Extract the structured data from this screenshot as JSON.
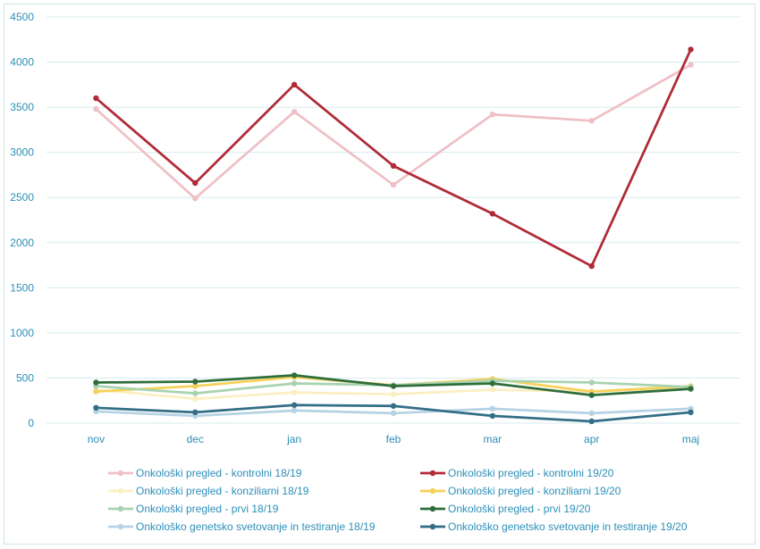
{
  "chart_data": {
    "type": "line",
    "title": "",
    "xlabel": "",
    "ylabel": "",
    "ylim": [
      0,
      4500
    ],
    "yticks": [
      0,
      500,
      1000,
      1500,
      2000,
      2500,
      3000,
      3500,
      4000,
      4500
    ],
    "grid": true,
    "legend_position": "bottom",
    "categories": [
      "nov",
      "dec",
      "jan",
      "feb",
      "mar",
      "apr",
      "maj"
    ],
    "series": [
      {
        "name": "Onkološki pregled - kontrolni 18/19",
        "color": "#efc0c6",
        "values": [
          3480,
          2490,
          3450,
          2640,
          3420,
          3350,
          3970
        ]
      },
      {
        "name": "Onkološki pregled - kontrolni 19/20",
        "color": "#b02a37",
        "values": [
          3600,
          2660,
          3750,
          2850,
          2320,
          1740,
          4140
        ]
      },
      {
        "name": "Onkološki pregled - konziliarni 18/19",
        "color": "#fbefc2",
        "values": [
          370,
          270,
          340,
          320,
          370,
          350,
          400
        ]
      },
      {
        "name": "Onkološki pregled - konziliarni 19/20",
        "color": "#f5d15a",
        "values": [
          350,
          410,
          510,
          420,
          490,
          350,
          410
        ]
      },
      {
        "name": "Onkološki pregled - prvi 18/19",
        "color": "#a8d3b0",
        "values": [
          410,
          330,
          440,
          420,
          470,
          450,
          400
        ]
      },
      {
        "name": "Onkološki pregled - prvi 19/20",
        "color": "#2f6e3b",
        "values": [
          450,
          460,
          530,
          410,
          440,
          310,
          380
        ]
      },
      {
        "name": "Onkološko genetsko svetovanje in testiranje 18/19",
        "color": "#b5d3e4",
        "values": [
          130,
          80,
          140,
          110,
          160,
          110,
          160
        ]
      },
      {
        "name": "Onkološko genetsko svetovanje in testiranje 19/20",
        "color": "#336e86",
        "values": [
          170,
          120,
          200,
          190,
          80,
          20,
          120
        ]
      }
    ]
  },
  "colors": {
    "grid": "#d7ecee",
    "axis_text": "#2b8fb8"
  }
}
